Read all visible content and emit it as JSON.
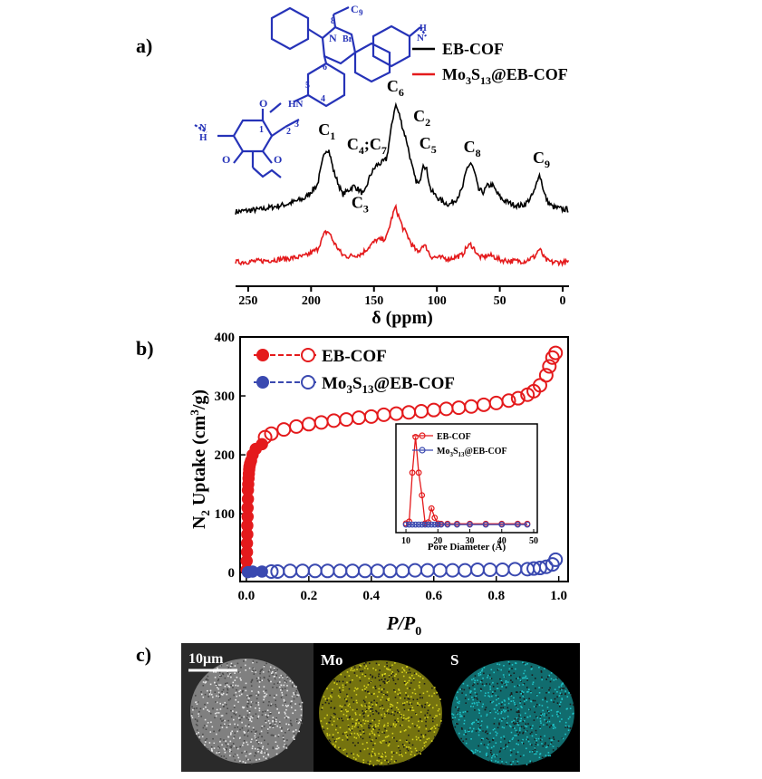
{
  "panels": {
    "a": {
      "label": "a)"
    },
    "b": {
      "label": "b)"
    },
    "c": {
      "label": "c)"
    }
  },
  "colors": {
    "ebcof": "#e41a1c",
    "mo": "#3a49b0",
    "black": "#000000",
    "chem": "#2633b8",
    "yellow": "#d6d21c",
    "cyan": "#1fc4c8"
  },
  "chart_data": [
    {
      "type": "line",
      "panel": "a",
      "xlabel": "δ (ppm)",
      "xlim": [
        260,
        -5
      ],
      "x_ticks": [
        250,
        200,
        150,
        100,
        50,
        0
      ],
      "x_tick_labels": [
        "250",
        "200",
        "150",
        "100",
        "50",
        "0"
      ],
      "series": [
        {
          "name": "EB-COF",
          "color": "#000000",
          "x": [
            260,
            240,
            220,
            205,
            195,
            189,
            186,
            182,
            175,
            170,
            166,
            162,
            158,
            153,
            148,
            144,
            140,
            136,
            133,
            130,
            127,
            124,
            120,
            117,
            114,
            111,
            108,
            105,
            100,
            95,
            90,
            85,
            80,
            76,
            73,
            70,
            67,
            63,
            60,
            56,
            52,
            48,
            44,
            40,
            35,
            30,
            25,
            22,
            19,
            17,
            15,
            12,
            8,
            4,
            0,
            -5
          ],
          "y": [
            0.12,
            0.14,
            0.18,
            0.23,
            0.34,
            0.62,
            0.63,
            0.45,
            0.26,
            0.3,
            0.33,
            0.3,
            0.26,
            0.42,
            0.5,
            0.52,
            0.55,
            0.82,
            1.0,
            0.92,
            0.8,
            0.7,
            0.5,
            0.38,
            0.34,
            0.52,
            0.46,
            0.3,
            0.24,
            0.2,
            0.18,
            0.22,
            0.3,
            0.48,
            0.52,
            0.44,
            0.3,
            0.28,
            0.33,
            0.34,
            0.27,
            0.22,
            0.2,
            0.18,
            0.17,
            0.18,
            0.24,
            0.3,
            0.43,
            0.38,
            0.28,
            0.2,
            0.16,
            0.15,
            0.14,
            0.14
          ]
        },
        {
          "name": "Mo3S13@EB-COF",
          "color": "#e41a1c",
          "x": [
            260,
            240,
            220,
            205,
            195,
            189,
            186,
            182,
            175,
            170,
            160,
            153,
            148,
            144,
            140,
            136,
            133,
            130,
            127,
            124,
            120,
            115,
            111,
            108,
            105,
            100,
            90,
            80,
            76,
            73,
            70,
            67,
            63,
            60,
            55,
            50,
            40,
            30,
            22,
            19,
            17,
            15,
            12,
            8,
            0,
            -5
          ],
          "y": [
            0.05,
            0.06,
            0.08,
            0.1,
            0.16,
            0.3,
            0.31,
            0.22,
            0.11,
            0.1,
            0.12,
            0.19,
            0.24,
            0.24,
            0.26,
            0.42,
            0.52,
            0.43,
            0.34,
            0.29,
            0.2,
            0.13,
            0.2,
            0.17,
            0.1,
            0.09,
            0.08,
            0.11,
            0.18,
            0.2,
            0.16,
            0.1,
            0.09,
            0.11,
            0.1,
            0.07,
            0.06,
            0.06,
            0.1,
            0.16,
            0.14,
            0.09,
            0.06,
            0.05,
            0.05,
            0.05
          ]
        }
      ],
      "peak_labels": [
        {
          "main": "C",
          "sub": "1",
          "x": 186,
          "y": 0.63
        },
        {
          "main": "C",
          "sub": "4",
          "tail": ";C",
          "tail_sub": "7",
          "x": 160,
          "y": 0.48
        },
        {
          "main": "C",
          "sub": "3",
          "x": 164,
          "y": 0.33
        },
        {
          "main": "C",
          "sub": "6",
          "x": 133,
          "y": 1.0
        },
        {
          "main": "C",
          "sub": "2",
          "x": 122,
          "y": 0.8
        },
        {
          "main": "C",
          "sub": "5",
          "x": 110,
          "y": 0.55
        },
        {
          "main": "C",
          "sub": "8",
          "x": 72,
          "y": 0.52
        },
        {
          "main": "C",
          "sub": "9",
          "x": 17,
          "y": 0.43
        }
      ],
      "legend": [
        {
          "label": "EB-COF",
          "main": "EB-COF",
          "color": "#000000"
        },
        {
          "label": "Mo3S13@EB-COF",
          "main": "Mo",
          "s1": "3",
          "mid": "S",
          "s2": "13",
          "tail": "@EB-COF",
          "color": "#e41a1c"
        }
      ],
      "structure_labels": [
        "N",
        "Br",
        "C",
        "9",
        "8",
        "7",
        "6",
        "5",
        "4",
        "3",
        "2",
        "1",
        "HN",
        "O",
        "H",
        "N"
      ]
    },
    {
      "type": "scatter",
      "panel": "b",
      "xlabel": "P/P0",
      "xlabel_main": "P/P",
      "xlabel_sub": "0",
      "ylabel": "N2 Uptake (cm3/g)",
      "xlim": [
        -0.02,
        1.03
      ],
      "ylim": [
        -15,
        400
      ],
      "x_ticks": [
        0.0,
        0.2,
        0.4,
        0.6,
        0.8,
        1.0
      ],
      "x_tick_labels": [
        "0.0",
        "0.2",
        "0.4",
        "0.6",
        "0.8",
        "1.0"
      ],
      "y_ticks": [
        0,
        100,
        200,
        300,
        400
      ],
      "y_tick_labels": [
        "0",
        "100",
        "200",
        "300",
        "400"
      ],
      "legend": [
        {
          "label": "EB-COF",
          "color": "#e41a1c"
        },
        {
          "label": "Mo3S13@EB-COF",
          "main": "Mo",
          "s1": "3",
          "mid": "S",
          "s2": "13",
          "tail": "@EB-COF",
          "color": "#3a49b0"
        }
      ],
      "series": [
        {
          "name": "EB-COF",
          "color": "#e41a1c",
          "adsorption": {
            "x": [
              0.001,
              0.001,
              0.002,
              0.002,
              0.003,
              0.003,
              0.004,
              0.004,
              0.005,
              0.005,
              0.006,
              0.007,
              0.008,
              0.009,
              0.01,
              0.012,
              0.015,
              0.02,
              0.03,
              0.05
            ],
            "y": [
              5,
              20,
              35,
              50,
              65,
              80,
              95,
              110,
              125,
              140,
              150,
              160,
              168,
              175,
              180,
              185,
              190,
              200,
              210,
              218
            ]
          },
          "desorption": {
            "x": [
              0.99,
              0.98,
              0.97,
              0.96,
              0.94,
              0.92,
              0.9,
              0.87,
              0.84,
              0.8,
              0.76,
              0.72,
              0.68,
              0.64,
              0.6,
              0.56,
              0.52,
              0.48,
              0.44,
              0.4,
              0.36,
              0.32,
              0.28,
              0.24,
              0.2,
              0.16,
              0.12,
              0.08,
              0.06
            ],
            "y": [
              373,
              365,
              350,
              335,
              318,
              308,
              302,
              296,
              292,
              288,
              285,
              282,
              280,
              278,
              276,
              274,
              272,
              270,
              268,
              265,
              263,
              260,
              258,
              255,
              252,
              248,
              243,
              236,
              230
            ]
          }
        },
        {
          "name": "Mo3S13@EB-COF",
          "color": "#3a49b0",
          "adsorption": {
            "x": [
              0.005,
              0.02,
              0.05
            ],
            "y": [
              1,
              2,
              2
            ]
          },
          "desorption": {
            "x": [
              0.99,
              0.98,
              0.96,
              0.94,
              0.92,
              0.9,
              0.86,
              0.82,
              0.78,
              0.74,
              0.7,
              0.66,
              0.62,
              0.58,
              0.54,
              0.5,
              0.46,
              0.42,
              0.38,
              0.34,
              0.3,
              0.26,
              0.22,
              0.18,
              0.14,
              0.1,
              0.08
            ],
            "y": [
              22,
              14,
              10,
              8,
              7,
              6,
              6,
              5,
              5,
              5,
              4,
              4,
              4,
              4,
              4,
              3,
              3,
              3,
              3,
              3,
              3,
              3,
              3,
              3,
              3,
              2,
              2
            ]
          }
        }
      ],
      "inset": {
        "xlabel": "Pore Diameter (Å)",
        "xlim": [
          8,
          50
        ],
        "ylim": [
          -5,
          260
        ],
        "x_ticks": [
          10,
          20,
          30,
          40,
          50
        ],
        "x_tick_labels": [
          "10",
          "20",
          "30",
          "40",
          "50"
        ],
        "legend": [
          {
            "label": "EB-COF",
            "color": "#e41a1c"
          },
          {
            "label": "Mo3S13@EB-COF",
            "main": "Mo",
            "s1": "3",
            "mid": "S",
            "s2": "13",
            "tail": "@EB-COF",
            "color": "#3a49b0"
          }
        ],
        "series": [
          {
            "name": "EB-COF",
            "color": "#e41a1c",
            "x": [
              10,
              11,
              12,
              13,
              14,
              15,
              16,
              17,
              18,
              19,
              20,
              21,
              23,
              26,
              30,
              35,
              40,
              45,
              48
            ],
            "y": [
              5,
              10,
              140,
              235,
              140,
              80,
              5,
              8,
              45,
              20,
              5,
              4,
              4,
              4,
              4,
              4,
              4,
              4,
              4
            ]
          },
          {
            "name": "Mo3S13@EB-COF",
            "color": "#3a49b0",
            "x": [
              10,
              11,
              12,
              13,
              14,
              15,
              16,
              17,
              18,
              19,
              20,
              21,
              23,
              26,
              30,
              35,
              40,
              45,
              48
            ],
            "y": [
              2,
              2,
              2,
              2,
              2,
              2,
              2,
              2,
              2,
              2,
              2,
              2,
              2,
              2,
              2,
              2,
              2,
              2,
              2
            ]
          }
        ]
      }
    }
  ],
  "mapping": {
    "scale_bar": "10μm",
    "panels": [
      {
        "label": "",
        "color": "#e0e0e0"
      },
      {
        "label": "Mo",
        "color": "#d6d21c"
      },
      {
        "label": "S",
        "color": "#1fc4c8"
      }
    ]
  }
}
